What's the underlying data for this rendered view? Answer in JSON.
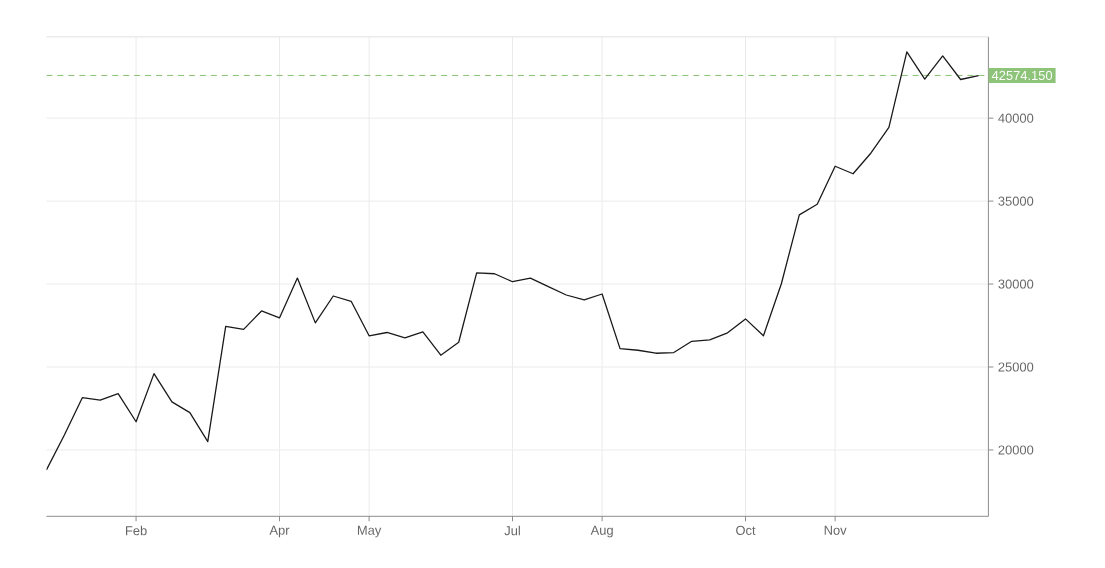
{
  "chart_data": {
    "type": "line",
    "categories": [
      null,
      null,
      null,
      null,
      null,
      "Feb",
      null,
      null,
      null,
      null,
      null,
      null,
      null,
      "Apr",
      null,
      null,
      null,
      null,
      "May",
      null,
      null,
      null,
      null,
      null,
      null,
      null,
      "Jul",
      null,
      null,
      null,
      null,
      "Aug",
      null,
      null,
      null,
      null,
      null,
      null,
      null,
      "Oct",
      null,
      null,
      null,
      null,
      "Nov",
      null,
      null,
      null,
      null,
      null,
      null,
      null,
      null
    ],
    "series": [
      {
        "color": "#1a1a1a",
        "values": [
          18800,
          20900,
          23150,
          23000,
          23400,
          21700,
          24600,
          22900,
          22250,
          20500,
          27450,
          27270,
          28380,
          27960,
          30360,
          27660,
          29280,
          28960,
          26880,
          27080,
          26760,
          27120,
          25710,
          26490,
          30670,
          30620,
          30140,
          30360,
          29840,
          29340,
          29040,
          29400,
          26110,
          26010,
          25830,
          25870,
          26550,
          26640,
          27060,
          27900,
          26880,
          30020,
          34170,
          34810,
          37100,
          36650,
          37900,
          39440,
          43990,
          42350,
          43750,
          42330,
          42570
        ]
      }
    ],
    "ylim": [
      16000,
      44900
    ],
    "yticks": [
      20000,
      25000,
      30000,
      35000,
      40000
    ],
    "grid": true,
    "ref_lines": [
      {
        "axis": "y",
        "value": 42574.15,
        "label": "42574.150",
        "color": "#8dc47a",
        "line_style": "dashed"
      }
    ]
  }
}
